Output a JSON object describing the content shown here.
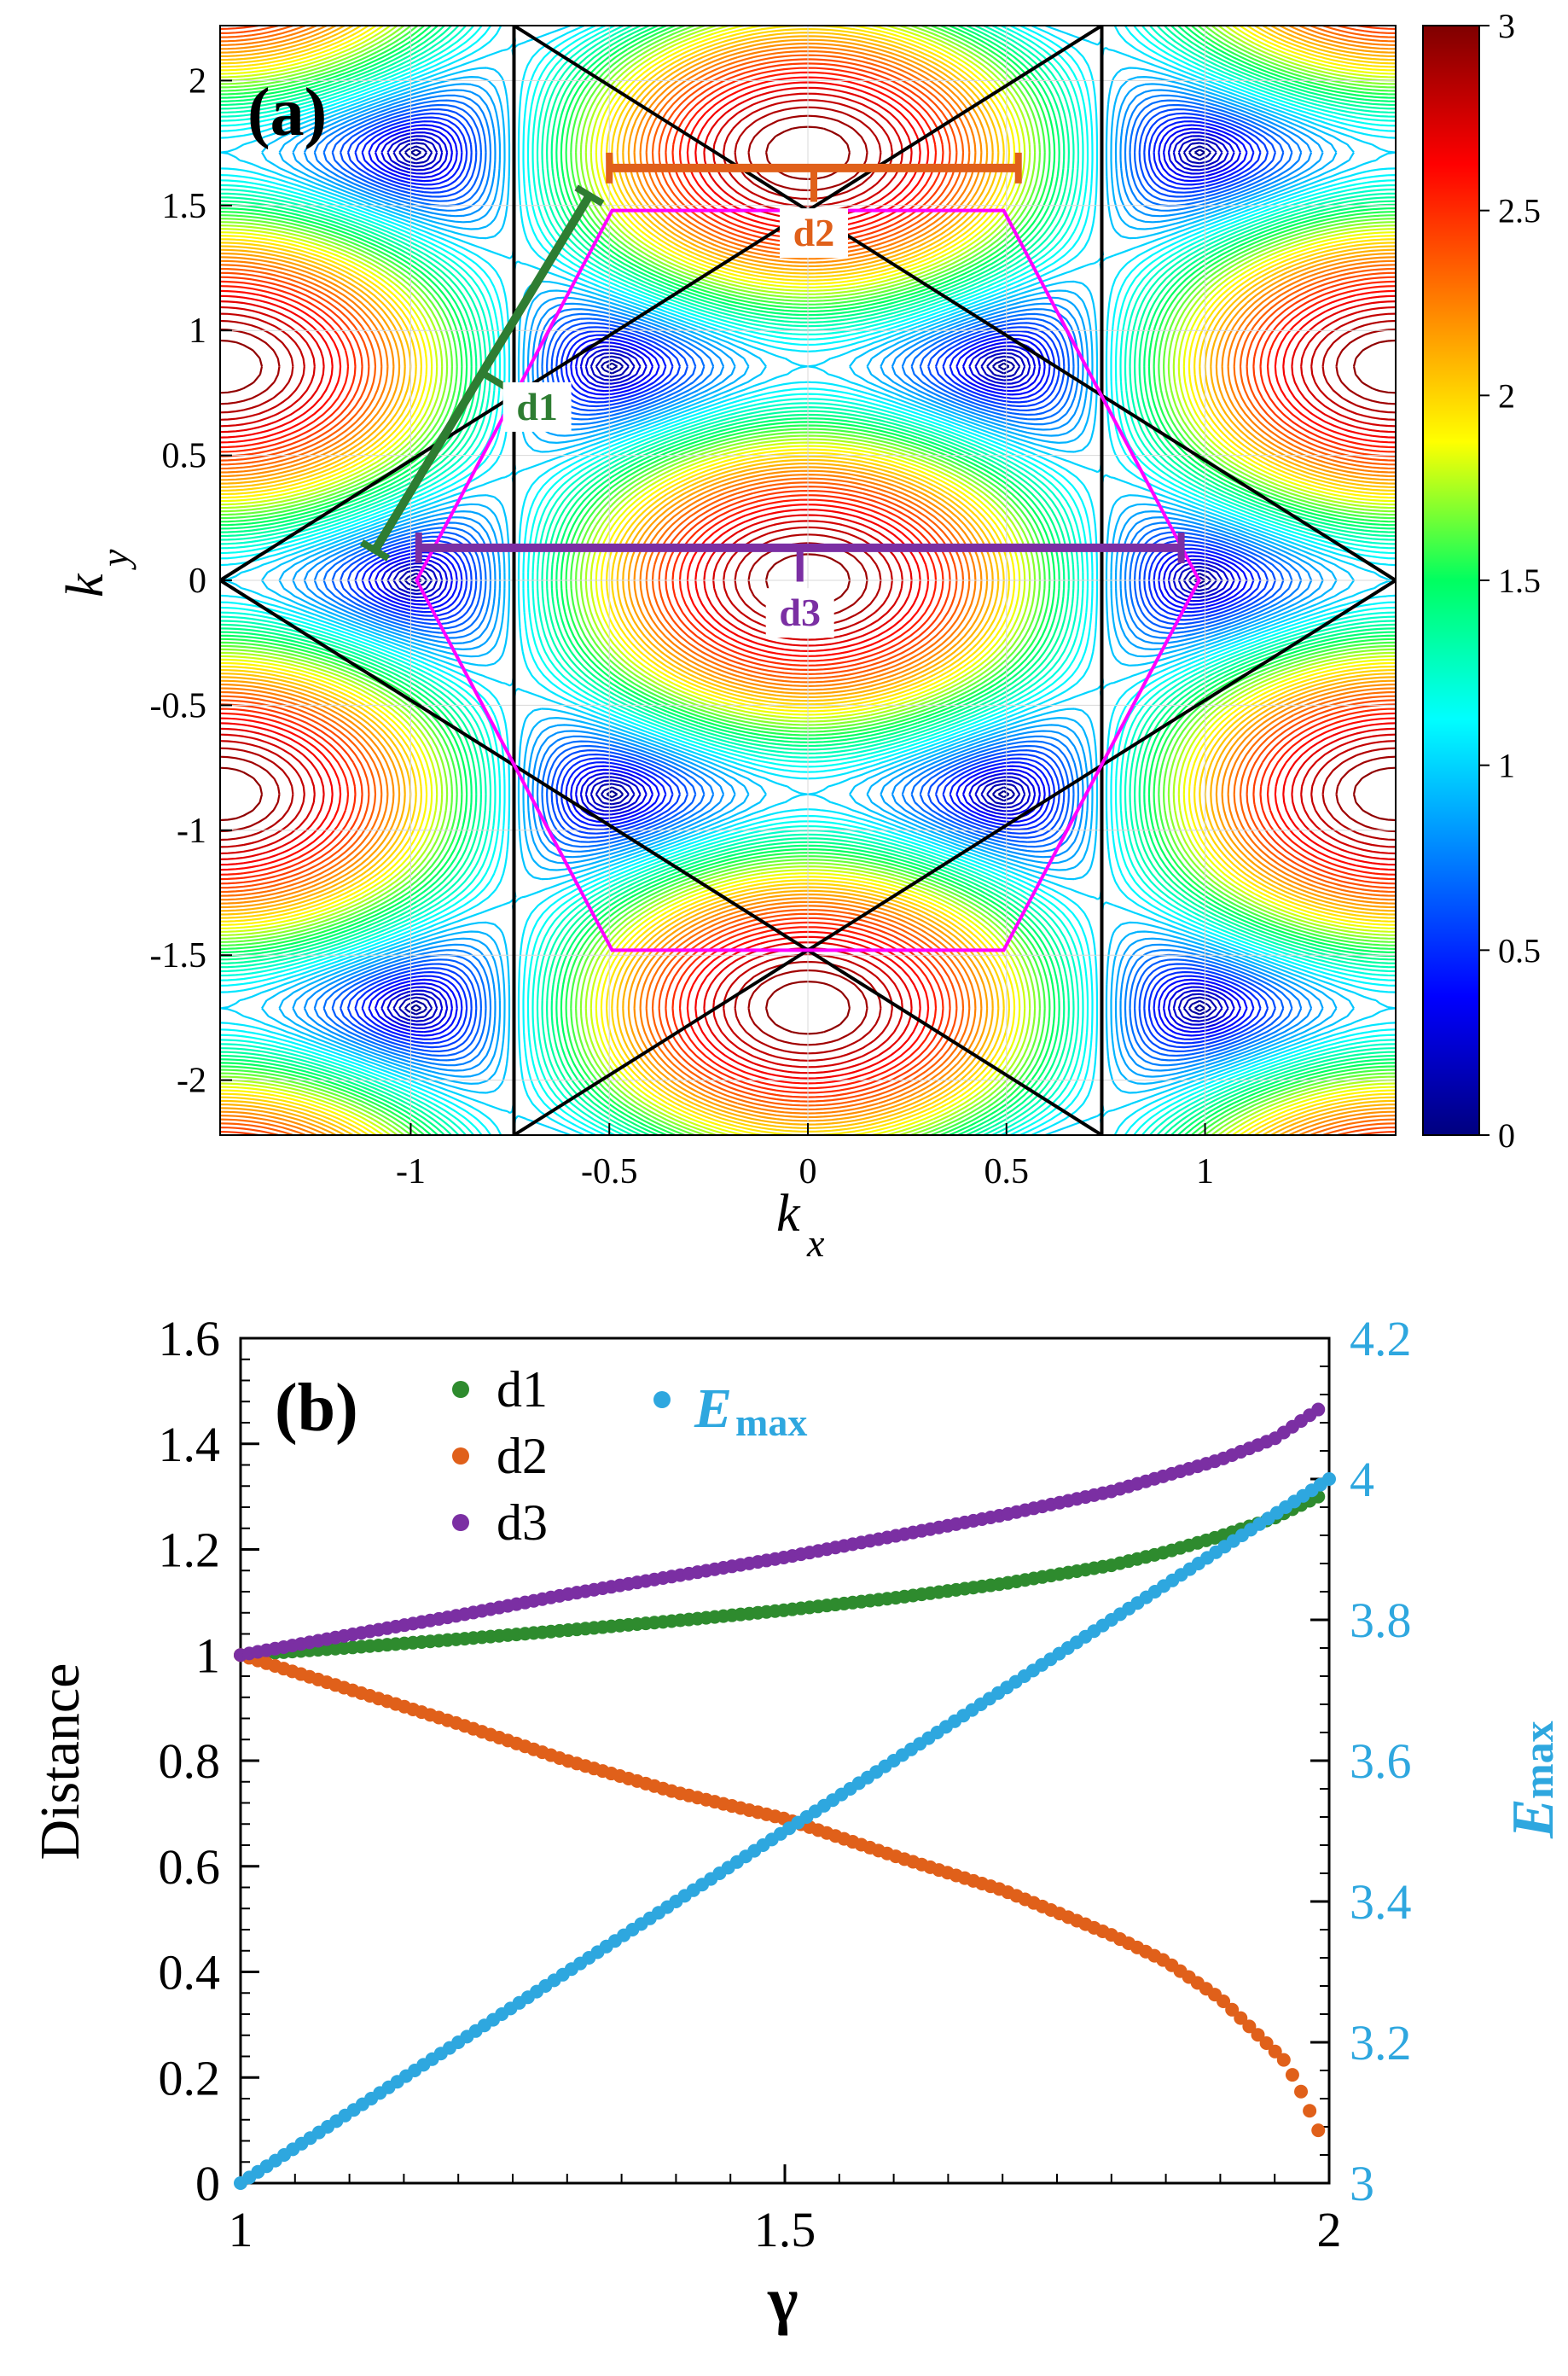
{
  "chart_data": [
    {
      "type": "contour",
      "panel_label": "(a)",
      "title": "",
      "xlabel": "k",
      "xlabel_sub": "x",
      "ylabel": "k",
      "ylabel_sub": "y",
      "xlim": [
        -1.48,
        1.48
      ],
      "ylim": [
        -2.22,
        2.22
      ],
      "x_ticks": [
        -1,
        -0.5,
        0,
        0.5,
        1
      ],
      "x_tick_labels": [
        "-1",
        "-0.5",
        "0",
        "0.5",
        "1"
      ],
      "y_ticks": [
        -2,
        -1.5,
        -1,
        -0.5,
        0,
        0.5,
        1,
        1.5,
        2
      ],
      "y_tick_labels": [
        "-2",
        "-1.5",
        "-1",
        "-0.5",
        "0",
        "0.5",
        "1",
        "1.5",
        "2"
      ],
      "colorbar": {
        "range": [
          0,
          3
        ],
        "ticks": [
          0,
          0.5,
          1,
          1.5,
          2,
          2.5,
          3
        ],
        "tick_labels": [
          "0",
          "0.5",
          "1",
          "1.5",
          "2",
          "2.5",
          "3"
        ]
      },
      "contour_levels": 60,
      "hexagon": {
        "color": "#ff00ff",
        "vertices": [
          [
            0.985,
            0
          ],
          [
            0.493,
            1.48
          ],
          [
            -0.493,
            1.48
          ],
          [
            -0.985,
            0
          ],
          [
            -0.493,
            -1.48
          ],
          [
            0.493,
            -1.48
          ]
        ]
      },
      "brillouin_zone": {
        "color": "#000000",
        "vertical_lines_x": [
          -0.74,
          0.74
        ],
        "star_vertices": [
          [
            -1.48,
            0
          ],
          [
            0,
            1.48
          ],
          [
            1.48,
            0
          ],
          [
            0,
            -1.48
          ]
        ]
      },
      "annotations": [
        {
          "label": "d1",
          "color": "#2e7d32",
          "from": [
            -1.09,
            0.12
          ],
          "to": [
            -0.55,
            1.54
          ]
        },
        {
          "label": "d2",
          "color": "#e0601a",
          "from": [
            -0.5,
            1.65
          ],
          "to": [
            0.53,
            1.65
          ]
        },
        {
          "label": "d3",
          "color": "#7b2fa3",
          "from": [
            -0.98,
            0.13
          ],
          "to": [
            0.94,
            0.13
          ]
        }
      ],
      "annotation_label_text": {
        "d1": "d1",
        "d2": "d2",
        "d3": "d3"
      }
    },
    {
      "type": "scatter",
      "panel_label": "(b)",
      "title": "",
      "xlabel": "γ",
      "ylabel": "Distance",
      "ylabel_right": "E",
      "ylabel_right_sub": "max",
      "xlim": [
        1,
        2
      ],
      "ylim": [
        0,
        1.6
      ],
      "ylim_right": [
        3,
        4.2
      ],
      "x_ticks": [
        1,
        1.5,
        2
      ],
      "x_tick_labels": [
        "1",
        "1.5",
        "2"
      ],
      "y_ticks": [
        0,
        0.2,
        0.4,
        0.6,
        0.8,
        1,
        1.2,
        1.4,
        1.6
      ],
      "y_tick_labels": [
        "0",
        "0.2",
        "0.4",
        "0.6",
        "0.8",
        "1",
        "1.2",
        "1.4",
        "1.6"
      ],
      "y_right_ticks": [
        3,
        3.2,
        3.4,
        3.6,
        3.8,
        4,
        4.2
      ],
      "y_right_tick_labels": [
        "3",
        "3.2",
        "3.4",
        "3.6",
        "3.8",
        "4",
        "4.2"
      ],
      "legend": [
        {
          "label": "d1",
          "color": "#2e8b2e"
        },
        {
          "label": "d2",
          "color": "#e0601a"
        },
        {
          "label": "d3",
          "color": "#7b2fa3"
        }
      ],
      "legend_right": {
        "label": "E",
        "sub": "max",
        "color": "#2ea7df"
      },
      "series": [
        {
          "name": "d1",
          "axis": "left",
          "color": "#2e8b2e",
          "x": [
            1.0,
            1.1,
            1.2,
            1.3,
            1.4,
            1.5,
            1.6,
            1.7,
            1.8,
            1.85,
            1.9,
            1.95,
            1.99
          ],
          "y": [
            1.0,
            1.014,
            1.03,
            1.047,
            1.065,
            1.085,
            1.108,
            1.135,
            1.17,
            1.195,
            1.225,
            1.26,
            1.3
          ]
        },
        {
          "name": "d2",
          "axis": "left",
          "color": "#e0601a",
          "x": [
            1.0,
            1.1,
            1.2,
            1.3,
            1.4,
            1.5,
            1.6,
            1.7,
            1.8,
            1.85,
            1.9,
            1.93,
            1.96,
            1.975,
            1.99
          ],
          "y": [
            1.0,
            0.935,
            0.87,
            0.8,
            0.74,
            0.69,
            0.62,
            0.555,
            0.47,
            0.42,
            0.35,
            0.29,
            0.23,
            0.17,
            0.1
          ]
        },
        {
          "name": "d3",
          "axis": "left",
          "color": "#7b2fa3",
          "x": [
            1.0,
            1.1,
            1.2,
            1.3,
            1.4,
            1.5,
            1.6,
            1.7,
            1.8,
            1.85,
            1.9,
            1.95,
            1.99
          ],
          "y": [
            1.0,
            1.038,
            1.075,
            1.115,
            1.15,
            1.185,
            1.225,
            1.265,
            1.31,
            1.34,
            1.37,
            1.41,
            1.465
          ]
        },
        {
          "name": "Emax",
          "axis": "right",
          "color": "#2ea7df",
          "x": [
            1.0,
            1.1,
            1.2,
            1.3,
            1.4,
            1.5,
            1.6,
            1.7,
            1.8,
            1.9,
            2.0
          ],
          "y": [
            3.0,
            3.1,
            3.2,
            3.3,
            3.4,
            3.5,
            3.6,
            3.7,
            3.8,
            3.9,
            4.0
          ]
        }
      ]
    }
  ]
}
